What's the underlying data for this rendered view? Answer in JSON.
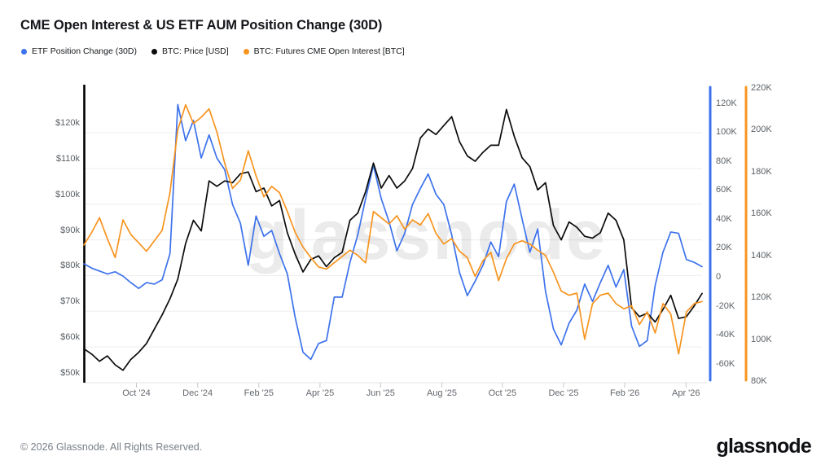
{
  "header": {
    "title": "CME Open Interest & US ETF AUM Position Change (30D)"
  },
  "footer": {
    "copyright": "© 2026 Glassnode. All Rights Reserved.",
    "brand": "glassnode"
  },
  "chart_data": {
    "type": "line",
    "title": "CME Open Interest & US ETF AUM Position Change (30D)",
    "watermark": "glassnode",
    "grid": "horizontal-only",
    "legend_position": "top-left",
    "colors": {
      "etf_blue": "#3d72ec",
      "price_black": "#0b0b0b",
      "oi_orange": "#f7941f",
      "gridline": "#ededed",
      "axis_line": "#e5e5e5",
      "tick_mark": "#c8c8c8"
    },
    "y_left": {
      "side": "left",
      "labels": [
        "$120k",
        "$110k",
        "$100k",
        "$90k",
        "$80k",
        "$70k",
        "$60k",
        "$50k"
      ],
      "values": [
        120,
        110,
        100,
        90,
        80,
        70,
        60,
        50
      ],
      "range": [
        50,
        120
      ]
    },
    "y_right_etf": {
      "side": "right-inner",
      "labels": [
        "120K",
        "100K",
        "80K",
        "60K",
        "40K",
        "20K",
        "0",
        "-20K",
        "-40K",
        "-60K"
      ],
      "values": [
        120,
        100,
        80,
        60,
        40,
        20,
        0,
        -20,
        -40,
        -60
      ],
      "range": [
        -75,
        132
      ]
    },
    "y_right_oi": {
      "side": "right-outer",
      "labels": [
        "220K",
        "200K",
        "180K",
        "160K",
        "140K",
        "120K",
        "100K",
        "80K"
      ],
      "values": [
        220,
        200,
        180,
        160,
        140,
        120,
        100,
        80
      ],
      "range": [
        80,
        220
      ]
    },
    "x_ticks": [
      {
        "label": "Oct '24",
        "pos": 0.085
      },
      {
        "label": "Dec '24",
        "pos": 0.184
      },
      {
        "label": "Feb '25",
        "pos": 0.283
      },
      {
        "label": "Apr '25",
        "pos": 0.382
      },
      {
        "label": "Jun '25",
        "pos": 0.48
      },
      {
        "label": "Aug '25",
        "pos": 0.579
      },
      {
        "label": "Oct '25",
        "pos": 0.677
      },
      {
        "label": "Dec '25",
        "pos": 0.776
      },
      {
        "label": "Feb '26",
        "pos": 0.875
      },
      {
        "label": "Apr '26",
        "pos": 0.974
      }
    ],
    "series": [
      {
        "name": "ETF Position Change (30D)",
        "axis": "right_etf",
        "color": "#3d72ec",
        "values": [
          9,
          6,
          4,
          2,
          3.5,
          0.5,
          -4,
          -8,
          -4,
          -5,
          -2,
          16,
          119,
          94,
          108,
          82,
          98,
          82,
          74,
          50,
          37,
          8,
          42,
          28,
          32,
          16,
          2,
          -28,
          -52,
          -57,
          -46,
          -44,
          -14,
          -14,
          10,
          29,
          54,
          77,
          54,
          38,
          18,
          30,
          50,
          61,
          71,
          57,
          50,
          29,
          3,
          -13,
          -3,
          8,
          24,
          14,
          52,
          64,
          40,
          17,
          33,
          -10,
          -36,
          -47,
          -32,
          -23,
          -5,
          -17,
          -4,
          8,
          -7,
          5,
          -34,
          -48,
          -44,
          -6,
          17,
          31,
          30,
          12,
          10,
          7
        ]
      },
      {
        "name": "BTC: Price [USD]",
        "axis": "left_price",
        "color": "#0b0b0b",
        "values": [
          59.5,
          58,
          56,
          57.5,
          55,
          53.5,
          56.5,
          58.5,
          61,
          65,
          69,
          73.5,
          79,
          89,
          95.5,
          92.5,
          106.5,
          105,
          106.5,
          106,
          108.5,
          109,
          103.5,
          104.5,
          99.5,
          101,
          92,
          86,
          81,
          84.5,
          85.5,
          82.5,
          85,
          86.5,
          95.5,
          97.5,
          103.5,
          111.5,
          104.5,
          108,
          104.5,
          106.5,
          110,
          118.5,
          121,
          119.5,
          122,
          124.5,
          117.5,
          113.5,
          112,
          114.5,
          116.5,
          116.5,
          126.5,
          119,
          113,
          110.5,
          104,
          106,
          94,
          90,
          95,
          93.5,
          91,
          90.5,
          92,
          97.5,
          95.5,
          90,
          71,
          68.5,
          69.5,
          67,
          70.5,
          74.5,
          68,
          68.5,
          71.5,
          75
        ]
      },
      {
        "name": "BTC: Futures CME Open Interest [BTC]",
        "axis": "right_oi",
        "color": "#f7941f",
        "values": [
          145,
          151,
          158,
          148,
          139,
          157,
          150,
          146,
          142,
          147,
          152,
          170,
          200,
          212,
          203,
          206,
          210,
          199,
          184,
          172,
          176,
          190,
          178,
          168,
          173,
          170,
          161,
          151,
          144,
          139,
          134.5,
          133.5,
          136.5,
          139.5,
          142.5,
          140,
          136.5,
          161,
          158,
          155,
          159,
          152.5,
          157,
          154.5,
          160,
          150.5,
          145.5,
          148,
          142,
          139,
          130,
          137.5,
          141.5,
          128,
          138.5,
          145.5,
          147,
          145.5,
          142.5,
          140,
          132,
          123,
          121,
          122,
          100,
          117,
          121,
          122,
          117,
          114.5,
          116,
          107,
          113,
          103,
          117,
          112,
          93,
          113,
          117,
          118
        ]
      }
    ]
  }
}
